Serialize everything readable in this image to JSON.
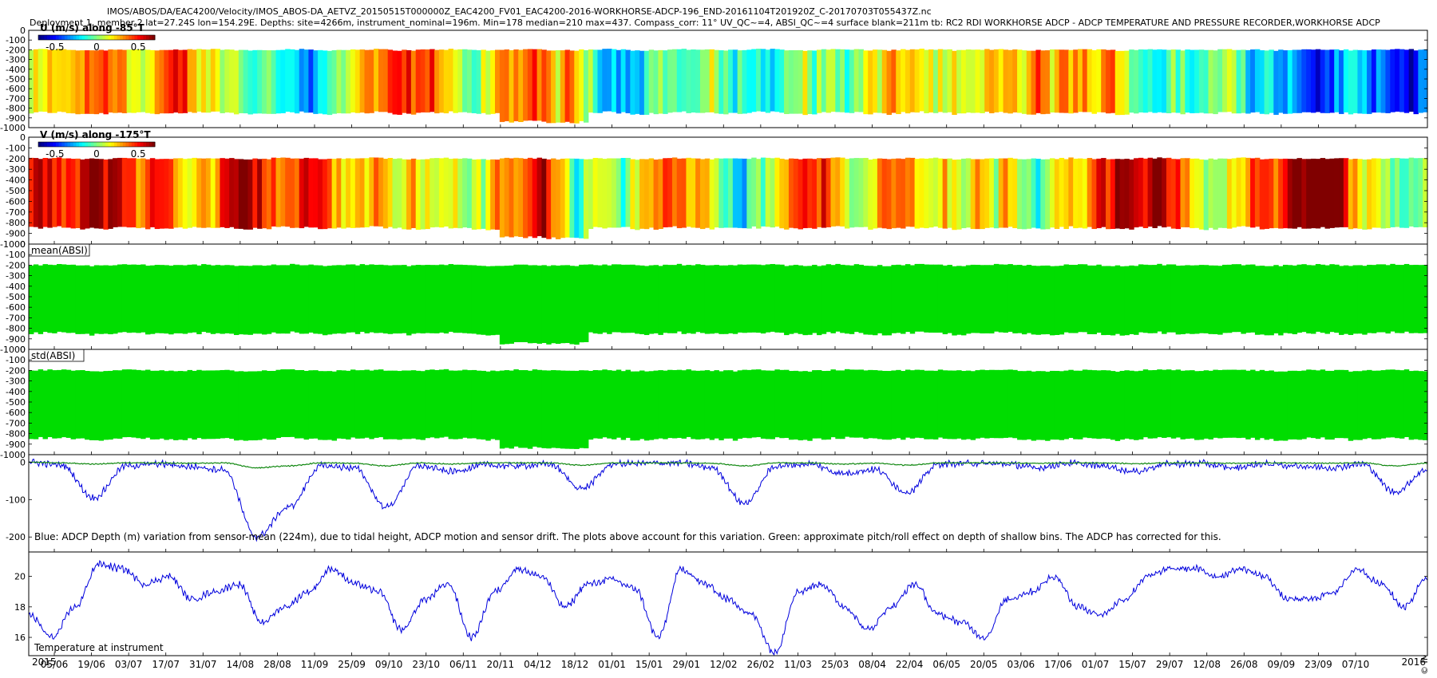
{
  "title_line1": "IMOS/ABOS/DA/EAC4200/Velocity/IMOS_ABOS-DA_AETVZ_20150515T000000Z_EAC4200_FV01_EAC4200-2016-WORKHORSE-ADCP-196_END-20161104T201920Z_C-20170703T055437Z.nc",
  "title_line2": "Deployment 1, member 2 lat=27.24S lon=154.29E. Depths: site=4266m, instrument_nominal=196m. Min=178 median=210 max=437. Compass_corr: 11° UV_QC~=4, ABSI_QC~=4 surface blank=211m tb: RC2 RDI WORKHORSE ADCP - ADCP TEMPERATURE AND PRESSURE RECORDER,WORKHORSE ADCP",
  "stamp": "© IMOS 02-Nov-2017 19:11:45 Hobart time",
  "colors": {
    "green": "#00dd00",
    "blue": "#0000dd",
    "dark_green": "#118811",
    "jet": [
      "#00008f",
      "#0000ff",
      "#0080ff",
      "#00ffff",
      "#80ff80",
      "#ffff00",
      "#ff8000",
      "#ff0000",
      "#800000"
    ]
  },
  "chart_data": [
    {
      "type": "heatmap",
      "title": "U (m/s) along -85°T",
      "series_name": "U",
      "colorbar_ticks": [
        "-0.5",
        "0",
        "0.5"
      ],
      "color_range": [
        -0.7,
        0.7
      ],
      "ylim": [
        -1000,
        0
      ],
      "yticks": [
        0,
        -100,
        -200,
        -300,
        -400,
        -500,
        -600,
        -700,
        -800,
        -900,
        -1000
      ],
      "depth_range": [
        -850,
        -200
      ],
      "typical_value": 0.0
    },
    {
      "type": "heatmap",
      "title": "V (m/s) along -175°T",
      "series_name": "V",
      "colorbar_ticks": [
        "-0.5",
        "0",
        "0.5"
      ],
      "color_range": [
        -0.7,
        0.7
      ],
      "ylim": [
        -1000,
        0
      ],
      "yticks": [
        0,
        -100,
        -200,
        -300,
        -400,
        -500,
        -600,
        -700,
        -800,
        -900,
        -1000
      ],
      "depth_range": [
        -850,
        -200
      ],
      "typical_value": 0.3
    },
    {
      "type": "heatmap",
      "title": "mean(ABSI)",
      "ylim": [
        -1000,
        0
      ],
      "yticks": [
        0,
        -100,
        -200,
        -300,
        -400,
        -500,
        -600,
        -700,
        -800,
        -900,
        -1000
      ],
      "depth_range": [
        -850,
        -200
      ]
    },
    {
      "type": "heatmap",
      "title": "std(ABSI)",
      "ylim": [
        -1000,
        0
      ],
      "yticks": [
        0,
        -100,
        -200,
        -300,
        -400,
        -500,
        -600,
        -700,
        -800,
        -900,
        -1000
      ],
      "depth_range": [
        -850,
        -200
      ]
    },
    {
      "type": "line",
      "annotation": "Blue: ADCP Depth (m) variation from sensor-mean (224m), due to tidal height, ADCP motion and sensor drift. The plots above account for this variation. Green: approximate pitch/roll effect on depth of shallow bins. The ADCP has corrected for this.",
      "ylim": [
        -240,
        20
      ],
      "yticks": [
        0,
        -100,
        -200
      ],
      "series": [
        {
          "name": "ADCP depth variation",
          "color": "blue",
          "anchors": [
            0,
            -8,
            -95,
            -10,
            -5,
            -12,
            -20,
            -200,
            -120,
            -10,
            -15,
            -120,
            -10,
            -25,
            -8,
            -10,
            -5,
            -70,
            -5,
            -3,
            -2,
            -15,
            -110,
            -10,
            -5,
            -30,
            -20,
            -80,
            -5,
            -3,
            -5,
            -15,
            -3,
            -10,
            -25,
            -5,
            -3,
            -15,
            -5,
            -10,
            -15,
            -5,
            -80,
            -20
          ]
        },
        {
          "name": "pitch/roll effect",
          "color": "dark_green",
          "anchors": [
            0,
            -2,
            -5,
            -2,
            -2,
            -3,
            -2,
            -15,
            -10,
            -2,
            -3,
            -10,
            -2,
            -5,
            -2,
            -2,
            -2,
            -8,
            -2,
            -2,
            -2,
            -3,
            -10,
            -2,
            -2,
            -5,
            -3,
            -8,
            -2,
            -2,
            -2,
            -3,
            -2,
            -2,
            -4,
            -2,
            -2,
            -3,
            -2,
            -2,
            -3,
            -2,
            -10,
            -3
          ]
        }
      ]
    },
    {
      "type": "line",
      "annotation": "Temperature at instrument",
      "ylim": [
        14.8,
        21.6
      ],
      "yticks": [
        16,
        18,
        20
      ],
      "series": [
        {
          "name": "Temperature",
          "color": "blue",
          "anchors": [
            17.5,
            16,
            18,
            20.8,
            20.5,
            19.5,
            20,
            18.5,
            19,
            19.5,
            17,
            18,
            19,
            20.5,
            19.5,
            19,
            16.5,
            18.5,
            19.5,
            16,
            19,
            20.5,
            20,
            18,
            19.5,
            19.8,
            19.2,
            16,
            20.5,
            19.5,
            18.5,
            17.5,
            15,
            19,
            19.5,
            18,
            16.5,
            18,
            19.5,
            17.5,
            17,
            16,
            18.5,
            19,
            20,
            18,
            17.5,
            18.5,
            20,
            20.5,
            20.5,
            20,
            20.5,
            20,
            18.5,
            18.5,
            19,
            20.5,
            19.5,
            18,
            20
          ]
        }
      ]
    }
  ],
  "x_axis": {
    "start_label": "2015",
    "end_label": "2016",
    "ticks": [
      "05/06",
      "19/06",
      "03/07",
      "17/07",
      "31/07",
      "14/08",
      "28/08",
      "11/09",
      "25/09",
      "09/10",
      "23/10",
      "06/11",
      "20/11",
      "04/12",
      "18/12",
      "01/01",
      "15/01",
      "29/01",
      "12/02",
      "26/02",
      "11/03",
      "25/03",
      "08/04",
      "22/04",
      "06/05",
      "20/05",
      "03/06",
      "17/06",
      "01/07",
      "15/07",
      "29/07",
      "12/08",
      "26/08",
      "09/09",
      "23/09",
      "07/10"
    ]
  }
}
